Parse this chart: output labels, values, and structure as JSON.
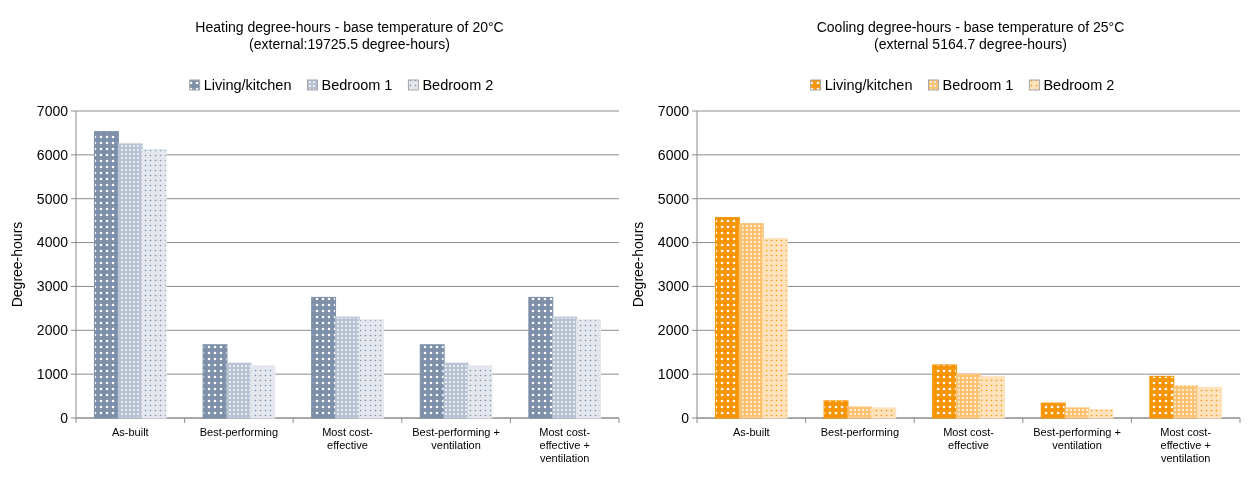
{
  "chart_data": [
    {
      "type": "bar",
      "title": "Heating degree-hours - base temperature of 20°C",
      "subtitle": "(external:19725.5 degree-hours)",
      "ylabel": "Degree-hours",
      "categories": [
        "As-built",
        "Best-performing",
        "Most cost-effective",
        "Best-performing + ventilation",
        "Most cost-effective + ventilation"
      ],
      "series": [
        {
          "name": "Living/kitchen",
          "color": "#7d8fa9",
          "values": [
            6530,
            1670,
            2750,
            1670,
            2750
          ]
        },
        {
          "name": "Bedroom 1",
          "color": "#b7c2d2",
          "values": [
            6250,
            1250,
            2300,
            1250,
            2300
          ]
        },
        {
          "name": "Bedroom 2",
          "color": "#e4e8ee",
          "values": [
            6120,
            1190,
            2240,
            1190,
            2240
          ]
        }
      ],
      "ylim": [
        0,
        7000
      ],
      "yticks": [
        0,
        1000,
        2000,
        3000,
        4000,
        5000,
        6000,
        7000
      ],
      "grid": "y",
      "legend": "top"
    },
    {
      "type": "bar",
      "title": "Cooling degree-hours - base temperature of 25°C",
      "subtitle": "(external 5164.7 degree-hours)",
      "ylabel": "Degree-hours",
      "categories": [
        "As-built",
        "Best-performing",
        "Most cost-effective",
        "Best-performing + ventilation",
        "Most cost-effective + ventilation"
      ],
      "series": [
        {
          "name": "Living/kitchen",
          "color": "#f79400",
          "values": [
            4570,
            390,
            1210,
            340,
            950
          ]
        },
        {
          "name": "Bedroom 1",
          "color": "#fbc272",
          "values": [
            4430,
            250,
            1000,
            230,
            730
          ]
        },
        {
          "name": "Bedroom 2",
          "color": "#fde2bc",
          "values": [
            4090,
            230,
            950,
            190,
            700
          ]
        }
      ],
      "ylim": [
        0,
        7000
      ],
      "yticks": [
        0,
        1000,
        2000,
        3000,
        4000,
        5000,
        6000,
        7000
      ],
      "grid": "y",
      "legend": "top"
    }
  ]
}
